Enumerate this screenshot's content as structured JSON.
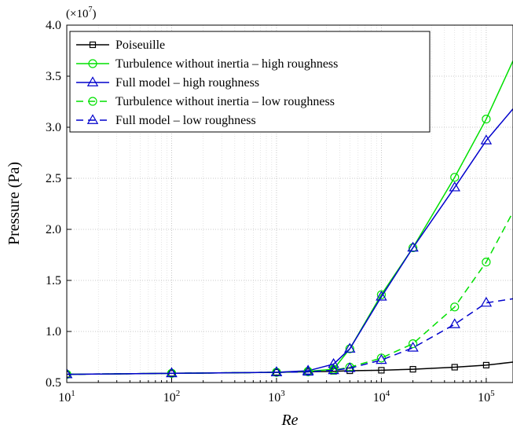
{
  "chart_data": {
    "type": "line",
    "xscale": "log",
    "x": [
      10,
      100,
      1000,
      2000,
      3500,
      5000,
      10000,
      20000,
      50000,
      100000,
      180000
    ],
    "xlim": [
      10,
      180000
    ],
    "ylim": [
      0.5,
      4.0
    ],
    "y_multiplier": "(×10",
    "y_multiplier_exp": "7",
    "y_multiplier_close": ")",
    "xlabel": "Re",
    "ylabel": "Pressure (Pa)",
    "xticks": [
      {
        "value": 10,
        "base": "10",
        "exp": "1"
      },
      {
        "value": 100,
        "base": "10",
        "exp": "2"
      },
      {
        "value": 1000,
        "base": "10",
        "exp": "3"
      },
      {
        "value": 10000,
        "base": "10",
        "exp": "4"
      },
      {
        "value": 100000,
        "base": "10",
        "exp": "5"
      }
    ],
    "yticks": [
      "0.5",
      "1.0",
      "1.5",
      "2.0",
      "2.5",
      "3.0",
      "3.5",
      "4.0"
    ],
    "grid": true,
    "legend_position": "top-left",
    "series": [
      {
        "name": "Poiseuille",
        "color": "#000000",
        "dash": "solid",
        "marker": "square",
        "y": [
          0.58,
          0.59,
          0.6,
          0.605,
          0.61,
          0.615,
          0.62,
          0.63,
          0.65,
          0.67,
          0.7
        ]
      },
      {
        "name": "Turbulence without inertia – high roughness",
        "color": "#00e000",
        "dash": "solid",
        "marker": "circle",
        "y": [
          0.58,
          0.59,
          0.6,
          0.61,
          0.63,
          0.83,
          1.36,
          1.82,
          2.51,
          3.08,
          3.65
        ]
      },
      {
        "name": "Full model – high roughness",
        "color": "#0000cc",
        "dash": "solid",
        "marker": "triangle",
        "y": [
          0.58,
          0.59,
          0.6,
          0.615,
          0.68,
          0.83,
          1.34,
          1.82,
          2.41,
          2.87,
          3.18
        ]
      },
      {
        "name": "Turbulence without inertia – low roughness",
        "color": "#00e000",
        "dash": "dashed",
        "marker": "circle",
        "y": [
          0.58,
          0.59,
          0.6,
          0.605,
          0.62,
          0.65,
          0.74,
          0.88,
          1.24,
          1.68,
          2.17
        ]
      },
      {
        "name": "Full model – low roughness",
        "color": "#0000cc",
        "dash": "dashed",
        "marker": "triangle",
        "y": [
          0.58,
          0.59,
          0.6,
          0.605,
          0.62,
          0.64,
          0.72,
          0.84,
          1.07,
          1.28,
          1.32
        ]
      }
    ]
  }
}
